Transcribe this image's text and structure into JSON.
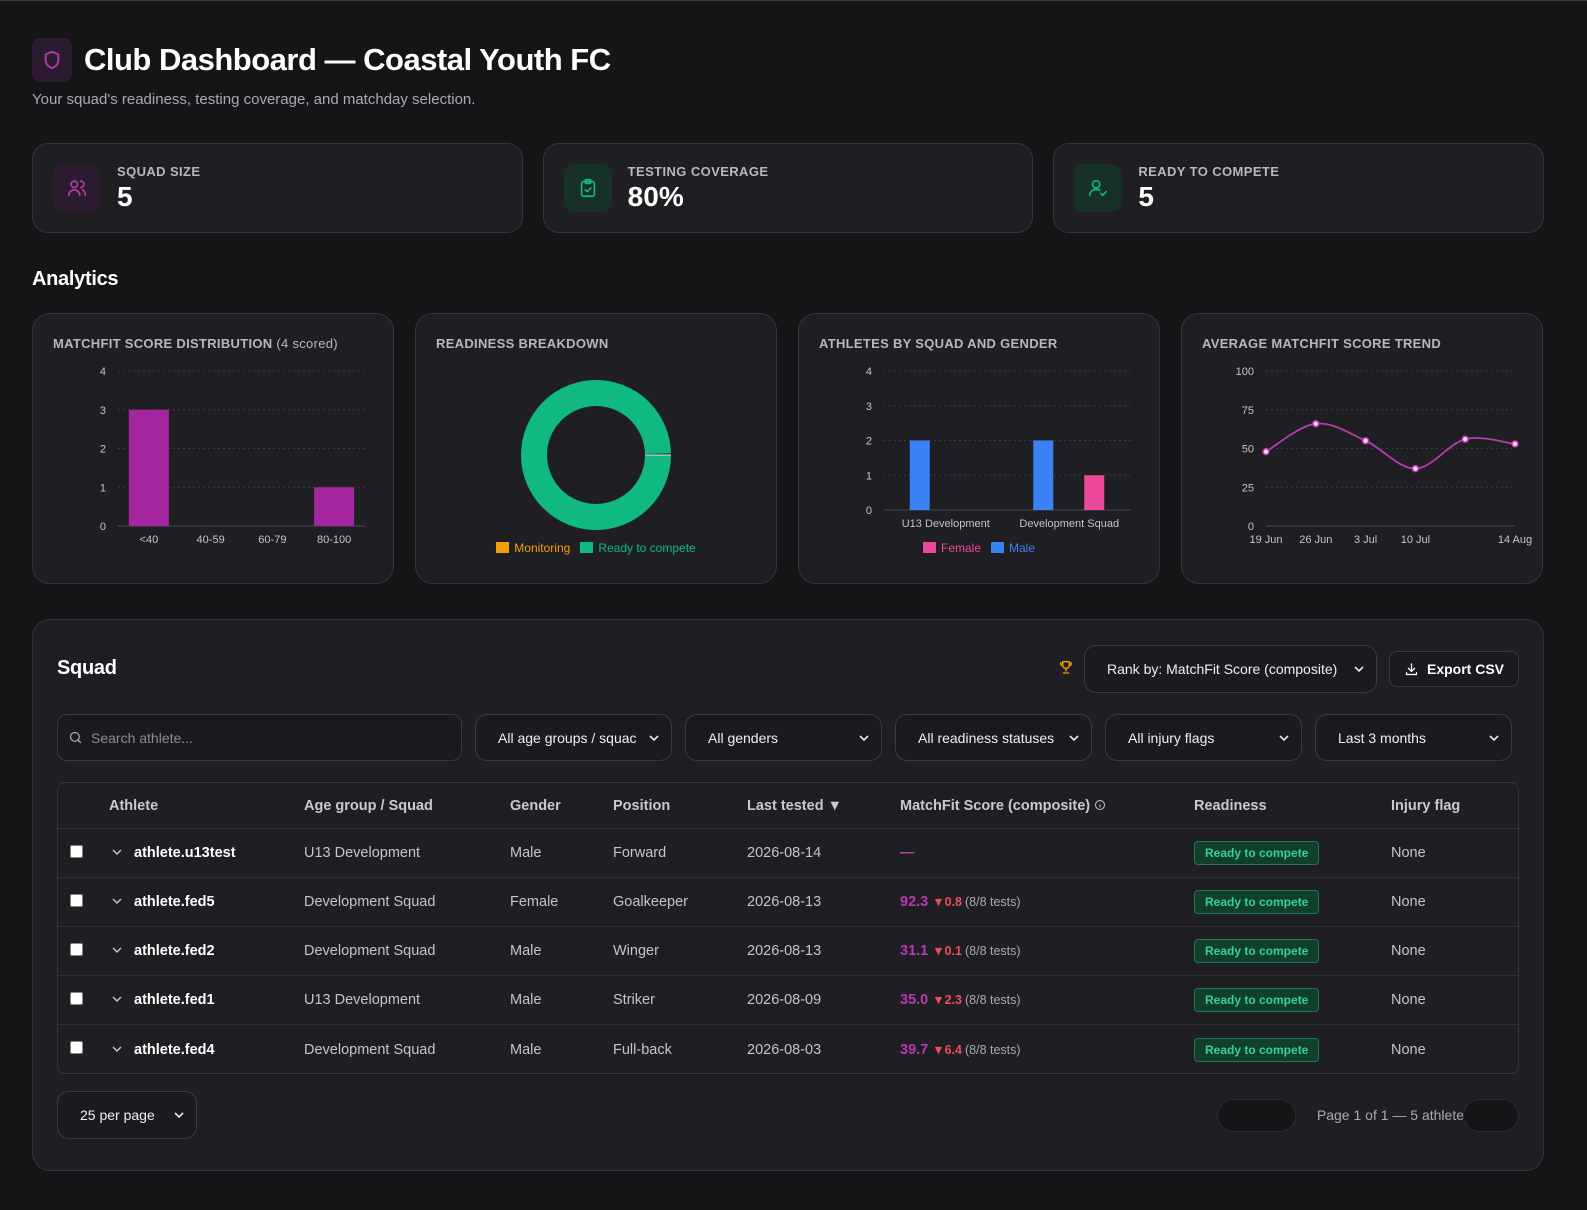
{
  "header": {
    "title": "Club Dashboard — Coastal Youth FC",
    "subtitle": "Your squad's readiness, testing coverage, and matchday selection."
  },
  "stats": [
    {
      "label": "SQUAD SIZE",
      "value": "5",
      "icon": "users-icon"
    },
    {
      "label": "TESTING COVERAGE",
      "value": "80%",
      "icon": "clipboard-check-icon"
    },
    {
      "label": "READY TO COMPETE",
      "value": "5",
      "icon": "user-check-icon"
    }
  ],
  "analytics_title": "Analytics",
  "charts": {
    "dist": {
      "title": "MATCHFIT SCORE DISTRIBUTION",
      "title_note": "(4 scored)"
    },
    "readiness": {
      "title": "READINESS BREAKDOWN",
      "legend": [
        "Monitoring",
        "Ready to compete"
      ]
    },
    "squad_gender": {
      "title": "ATHLETES BY SQUAD AND GENDER",
      "legend": [
        "Female",
        "Male"
      ]
    },
    "trend": {
      "title": "AVERAGE MATCHFIT SCORE TREND"
    }
  },
  "chart_data": [
    {
      "type": "bar",
      "title": "MATCHFIT SCORE DISTRIBUTION (4 scored)",
      "categories": [
        "<40",
        "40-59",
        "60-79",
        "80-100"
      ],
      "values": [
        3,
        0,
        0,
        1
      ],
      "ylim": [
        0,
        4
      ],
      "yticks": [
        0,
        1,
        2,
        3,
        4
      ],
      "color": "#a3259f",
      "grid": true
    },
    {
      "type": "pie",
      "title": "READINESS BREAKDOWN",
      "donut": true,
      "labels": [
        "Monitoring",
        "Ready to compete"
      ],
      "values": [
        0,
        5
      ],
      "colors": [
        "#f59e0b",
        "#10b981"
      ],
      "legend": "bottom"
    },
    {
      "type": "bar",
      "title": "ATHLETES BY SQUAD AND GENDER",
      "categories": [
        "U13 Development",
        "Development Squad"
      ],
      "series": [
        {
          "name": "Male",
          "values": [
            2,
            2
          ],
          "color": "#3b82f6"
        },
        {
          "name": "Female",
          "values": [
            0,
            1
          ],
          "color": "#ec4899"
        }
      ],
      "ylim": [
        0,
        4
      ],
      "yticks": [
        0,
        1,
        2,
        3,
        4
      ],
      "legend": "bottom",
      "grid": true
    },
    {
      "type": "line",
      "title": "AVERAGE MATCHFIT SCORE TREND",
      "x": [
        "19 Jun",
        "26 Jun",
        "3 Jul",
        "10 Jul",
        "",
        "14 Aug"
      ],
      "x_tick_labels": [
        "19 Jun",
        "26 Jun",
        "3 Jul",
        "10 Jul",
        "14 Aug"
      ],
      "values": [
        48,
        66,
        55,
        37,
        56,
        53
      ],
      "ylim": [
        0,
        100
      ],
      "yticks": [
        0,
        25,
        50,
        75,
        100
      ],
      "color": "#b43cae",
      "grid": true
    }
  ],
  "squad": {
    "title": "Squad",
    "rank_select": "Rank by: MatchFit Score (composite)",
    "export_label": "Export CSV",
    "search_placeholder": "Search athlete...",
    "filters": [
      "All age groups / squac",
      "All genders",
      "All readiness statuses",
      "All injury flags",
      "Last 3 months"
    ],
    "columns": [
      "Athlete",
      "Age group / Squad",
      "Gender",
      "Position",
      "Last tested ▼",
      "MatchFit Score (composite)",
      "Readiness",
      "Injury flag"
    ],
    "rows": [
      {
        "athlete": "athlete.u13test",
        "group": "U13 Development",
        "gender": "Male",
        "position": "Forward",
        "last_tested": "2026-08-14",
        "score": "—",
        "delta": "",
        "tests": "",
        "readiness": "Ready to compete",
        "injury": "None"
      },
      {
        "athlete": "athlete.fed5",
        "group": "Development Squad",
        "gender": "Female",
        "position": "Goalkeeper",
        "last_tested": "2026-08-13",
        "score": "92.3",
        "delta": "▼0.8",
        "tests": "(8/8 tests)",
        "readiness": "Ready to compete",
        "injury": "None"
      },
      {
        "athlete": "athlete.fed2",
        "group": "Development Squad",
        "gender": "Male",
        "position": "Winger",
        "last_tested": "2026-08-13",
        "score": "31.1",
        "delta": "▼0.1",
        "tests": "(8/8 tests)",
        "readiness": "Ready to compete",
        "injury": "None"
      },
      {
        "athlete": "athlete.fed1",
        "group": "U13 Development",
        "gender": "Male",
        "position": "Striker",
        "last_tested": "2026-08-09",
        "score": "35.0",
        "delta": "▼2.3",
        "tests": "(8/8 tests)",
        "readiness": "Ready to compete",
        "injury": "None"
      },
      {
        "athlete": "athlete.fed4",
        "group": "Development Squad",
        "gender": "Male",
        "position": "Full-back",
        "last_tested": "2026-08-03",
        "score": "39.7",
        "delta": "▼6.4",
        "tests": "(8/8 tests)",
        "readiness": "Ready to compete",
        "injury": "None"
      }
    ],
    "per_page": "25 per page",
    "pagination_text": "Page 1 of 1 — 5 athletes"
  }
}
